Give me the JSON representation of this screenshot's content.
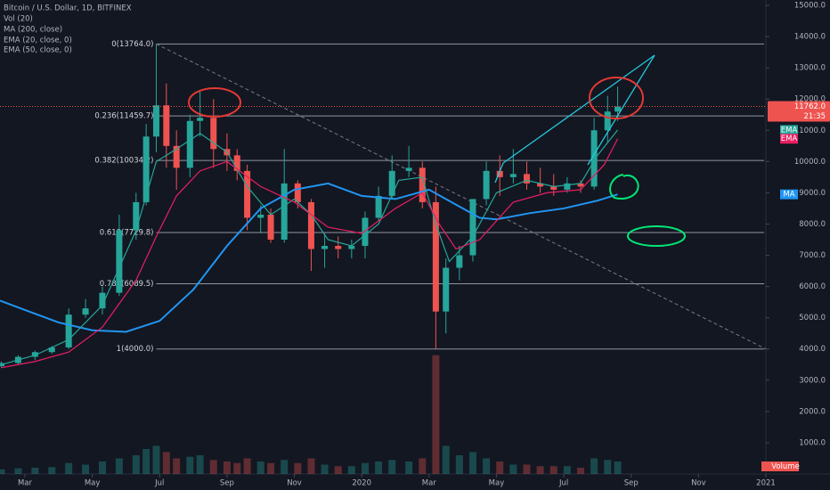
{
  "chart_data": {
    "type": "candlestick",
    "title": "Bitcoin / U.S. Dollar, 1D, BITFINEX",
    "volume_name": "Vol (20)",
    "volume_badge": "Volume",
    "x": [
      1.3,
      1.8,
      2.3,
      2.8,
      3.3,
      3.8,
      4.3,
      4.8,
      5.3,
      5.6,
      5.9,
      6.2,
      6.5,
      6.9,
      7.2,
      7.6,
      8.0,
      8.3,
      8.6,
      9.0,
      9.3,
      9.7,
      10.1,
      10.5,
      10.9,
      11.3,
      11.7,
      12.1,
      12.5,
      12.9,
      13.4,
      13.8,
      14.2,
      14.5,
      14.9,
      15.3,
      15.7,
      16.1,
      16.5,
      16.9,
      17.3,
      17.7,
      18.1,
      18.5,
      18.9,
      19.3,
      19.6
    ],
    "open": [
      3450,
      3550,
      3750,
      3900,
      4050,
      5100,
      5300,
      5800,
      7800,
      8700,
      10800,
      11800,
      10500,
      9800,
      11300,
      11400,
      10400,
      10200,
      9700,
      8200,
      8300,
      7500,
      9300,
      8700,
      7200,
      7300,
      7200,
      7300,
      8200,
      8900,
      9700,
      9800,
      8700,
      5200,
      6600,
      7000,
      8800,
      9700,
      9500,
      9600,
      9300,
      9200,
      9100,
      9300,
      9200,
      11000,
      11600
    ],
    "high": [
      3600,
      3800,
      3950,
      4100,
      5300,
      5600,
      6000,
      8300,
      9000,
      11200,
      13764,
      12500,
      11000,
      11500,
      12300,
      12000,
      10900,
      10400,
      9900,
      8600,
      8500,
      10400,
      9400,
      8800,
      7700,
      7600,
      7500,
      8400,
      9200,
      10200,
      10500,
      10000,
      9200,
      6900,
      7300,
      8800,
      10000,
      10200,
      10400,
      10000,
      9800,
      9600,
      9500,
      9400,
      11400,
      12100,
      12400
    ],
    "low": [
      3400,
      3500,
      3650,
      3850,
      4000,
      5000,
      5100,
      5700,
      7500,
      8600,
      10300,
      9800,
      9100,
      9500,
      10800,
      9800,
      9700,
      9400,
      7800,
      7700,
      7400,
      7400,
      8500,
      6500,
      6600,
      6900,
      6900,
      6900,
      8100,
      8800,
      9500,
      8500,
      4000,
      4500,
      6200,
      6800,
      8600,
      8900,
      9300,
      9100,
      9000,
      8900,
      9000,
      9000,
      9100,
      10600,
      11300
    ],
    "close": [
      3550,
      3750,
      3900,
      4050,
      5100,
      5300,
      5800,
      7800,
      8700,
      10800,
      11800,
      10500,
      9800,
      11300,
      11400,
      10400,
      10200,
      9700,
      8200,
      8300,
      7500,
      9300,
      8700,
      7200,
      7300,
      7200,
      7300,
      8200,
      8900,
      9700,
      9800,
      8700,
      5200,
      6600,
      7000,
      8800,
      9700,
      9500,
      9600,
      9300,
      9200,
      9100,
      9300,
      9200,
      11000,
      11600,
      11762
    ],
    "volume": [
      150,
      180,
      200,
      220,
      350,
      300,
      400,
      500,
      600,
      800,
      900,
      700,
      500,
      550,
      600,
      450,
      400,
      350,
      500,
      400,
      350,
      450,
      350,
      500,
      300,
      250,
      250,
      350,
      400,
      450,
      400,
      500,
      3800,
      900,
      600,
      700,
      500,
      400,
      300,
      300,
      250,
      250,
      250,
      200,
      500,
      450,
      400
    ],
    "up_color": "#26a69a",
    "down_color": "#ef5350",
    "series": [
      {
        "name": "MA (200, close)",
        "badge": "MA",
        "color": "#2196f3",
        "x": [
          1.26,
          2,
          3,
          4,
          5,
          6,
          7,
          8,
          9,
          10,
          11,
          12,
          13,
          14,
          15,
          15.5,
          16,
          17,
          18,
          19,
          19.6
        ],
        "values": [
          5550,
          5250,
          4850,
          4600,
          4550,
          4900,
          5900,
          7300,
          8500,
          9100,
          9300,
          8900,
          8800,
          9100,
          8500,
          8200,
          8150,
          8350,
          8500,
          8750,
          8950
        ]
      },
      {
        "name": "EMA (20, close, 0)",
        "badge": "EMA",
        "color": "#26a69a",
        "x": [
          1.3,
          2.3,
          3.3,
          4.3,
          4.8,
          5.3,
          5.9,
          6.5,
          7.2,
          8,
          8.6,
          9.3,
          10,
          10.5,
          11,
          11.7,
          12.5,
          13.1,
          13.8,
          14.2,
          14.6,
          15.3,
          16,
          16.9,
          17.7,
          18.5,
          19,
          19.6
        ],
        "values": [
          3500,
          3800,
          4300,
          5400,
          6600,
          7800,
          10000,
          10400,
          10900,
          10300,
          9200,
          8300,
          8800,
          8300,
          7500,
          7300,
          8000,
          9400,
          9500,
          8000,
          6800,
          7600,
          9000,
          9400,
          9200,
          9300,
          10200,
          11010
        ]
      },
      {
        "name": "EMA (50, close, 0)",
        "badge": "EMA",
        "color": "#e91e63",
        "x": [
          1.3,
          2.3,
          3.3,
          4.3,
          5.3,
          5.9,
          6.5,
          7.2,
          8,
          9,
          10,
          11,
          12,
          13,
          13.8,
          14.3,
          14.8,
          15.5,
          16.5,
          17.5,
          18.5,
          19.2,
          19.6
        ],
        "values": [
          3400,
          3600,
          3900,
          4700,
          6200,
          7600,
          8900,
          9700,
          10000,
          9200,
          8700,
          7900,
          7700,
          8500,
          9000,
          8000,
          7200,
          7500,
          8700,
          9000,
          9100,
          9900,
          10730
        ]
      }
    ],
    "last_price": {
      "value": 11762,
      "label": "11762.0",
      "countdown": "21:35"
    },
    "fib_start": 5.9,
    "fib_levels": [
      {
        "value": 13764,
        "label": "0(13764.0)"
      },
      {
        "value": 11459.7,
        "label": "0.236(11459.7)"
      },
      {
        "value": 10034.2,
        "label": "0.382(10034.2)"
      },
      {
        "value": 7729.8,
        "label": "0.618(7729.8)"
      },
      {
        "value": 6089.5,
        "label": "0.786(6089.5)"
      },
      {
        "value": 4000,
        "label": "1(4000.0)"
      }
    ],
    "trendline": {
      "x": [
        5.9,
        24
      ],
      "values": [
        13764,
        4000
      ]
    },
    "xlim": [
      1.26,
      24
    ],
    "xticks": [
      {
        "value": 2,
        "label": "Mar"
      },
      {
        "value": 4,
        "label": "May"
      },
      {
        "value": 6,
        "label": "Jul"
      },
      {
        "value": 8,
        "label": "Sep"
      },
      {
        "value": 10,
        "label": "Nov"
      },
      {
        "value": 12,
        "label": "2020"
      },
      {
        "value": 14,
        "label": "Mar"
      },
      {
        "value": 16,
        "label": "May"
      },
      {
        "value": 18,
        "label": "Jul"
      },
      {
        "value": 20,
        "label": "Sep"
      },
      {
        "value": 22,
        "label": "Nov"
      },
      {
        "value": 24,
        "label": "2021"
      }
    ],
    "ylim": [
      0,
      15000
    ],
    "yticks": [
      {
        "value": 1000,
        "label": "1000.0"
      },
      {
        "value": 2000,
        "label": "2000.0"
      },
      {
        "value": 3000,
        "label": "3000.0"
      },
      {
        "value": 4000,
        "label": "4000.0"
      },
      {
        "value": 5000,
        "label": "5000.0"
      },
      {
        "value": 6000,
        "label": "6000.0"
      },
      {
        "value": 7000,
        "label": "7000.0"
      },
      {
        "value": 8000,
        "label": "8000.0"
      },
      {
        "value": 9000,
        "label": "9000.0"
      },
      {
        "value": 10000,
        "label": "10000.0"
      },
      {
        "value": 11000,
        "label": "11000.0"
      },
      {
        "value": 12000,
        "label": "12000.0"
      },
      {
        "value": 13000,
        "label": "13000.0"
      },
      {
        "value": 14000,
        "label": "14000.0"
      },
      {
        "value": 15000,
        "label": "15000.0"
      }
    ]
  }
}
